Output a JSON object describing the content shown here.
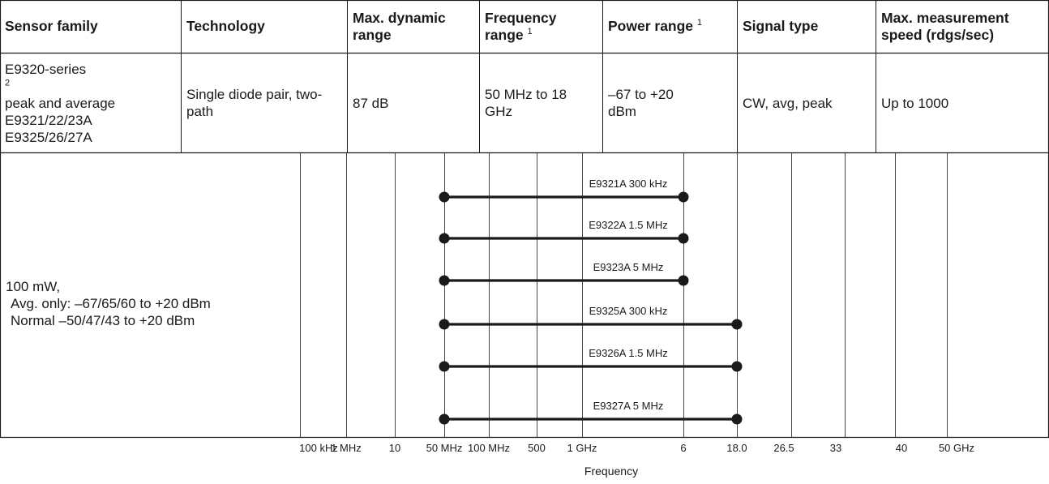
{
  "table": {
    "headers": [
      {
        "text": "Sensor family",
        "sup": ""
      },
      {
        "text": "Technology",
        "sup": ""
      },
      {
        "text": "Max. dynamic range",
        "sup": ""
      },
      {
        "text": "Frequency range",
        "sup": "1"
      },
      {
        "text": "Power range",
        "sup": "1"
      },
      {
        "text": "Signal type",
        "sup": ""
      },
      {
        "text": "Max. measurement speed (rdgs/sec)",
        "sup": ""
      }
    ],
    "row": {
      "sensor_family": {
        "line1": "E9320-series",
        "line1_sup": "2",
        "line2": "peak and average",
        "line3": "E9321/22/23A",
        "line4": "E9325/26/27A"
      },
      "technology": "Single diode pair, two-path",
      "dynamic_range": "87 dB",
      "frequency_range": "50 MHz to 18 GHz",
      "power_range": "–67 to +20 dBm",
      "signal_type": "CW, avg, peak",
      "speed": "Up to 1000"
    }
  },
  "row_label": {
    "line1": "100 mW,",
    "line2": "Avg. only: –67/65/60 to +20 dBm",
    "line3": "Normal –50/47/43 to +20 dBm"
  },
  "chart_data": {
    "type": "range",
    "xlabel": "Frequency",
    "x_ticks": [
      "100 kHz",
      "1 MHz",
      "10",
      "50 MHz",
      "100 MHz",
      "500",
      "1 GHz",
      "6",
      "18.0",
      "26.5",
      "33",
      "40",
      "50 GHz"
    ],
    "grid": true,
    "series": [
      {
        "name": "E9321A 300 kHz",
        "start": "50 MHz",
        "end": "6 GHz"
      },
      {
        "name": "E9322A 1.5 MHz",
        "start": "50 MHz",
        "end": "6 GHz"
      },
      {
        "name": "E9323A 5 MHz",
        "start": "50 MHz",
        "end": "6 GHz"
      },
      {
        "name": "E9325A 300 kHz",
        "start": "50 MHz",
        "end": "18.0 GHz"
      },
      {
        "name": "E9326A 1.5 MHz",
        "start": "50 MHz",
        "end": "18.0 GHz"
      },
      {
        "name": "E9327A 5 MHz",
        "start": "50 MHz",
        "end": "18.0 GHz"
      }
    ],
    "colors": {
      "line": "#1a1a1a",
      "grid": "#1a1a1a"
    }
  }
}
